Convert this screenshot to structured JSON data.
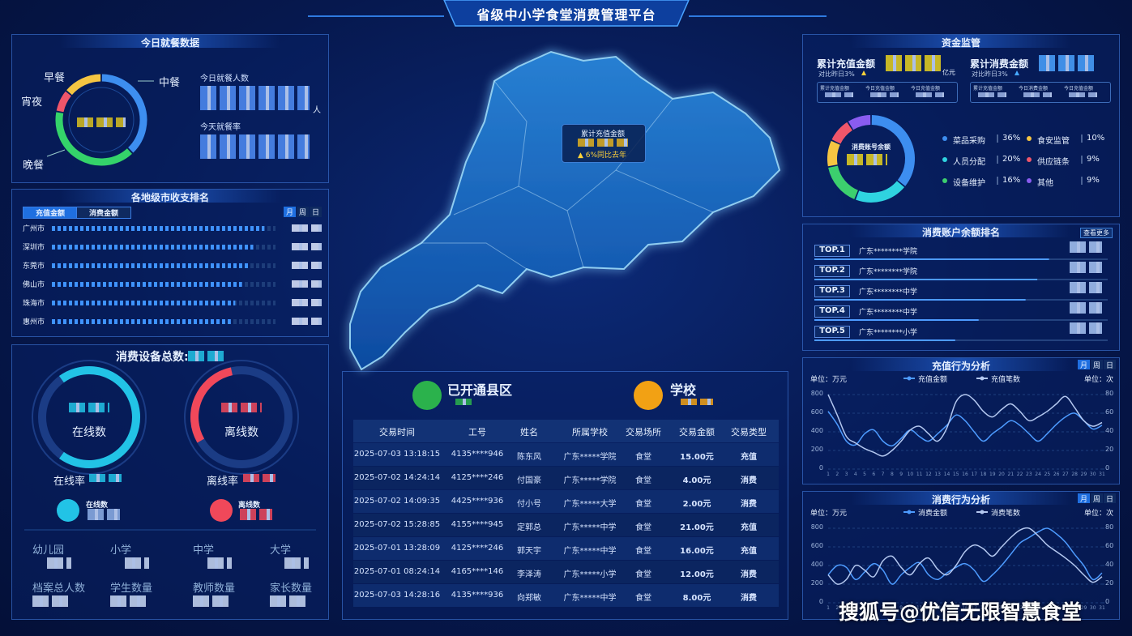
{
  "header": {
    "title": "省级中小学食堂消费管理平台"
  },
  "meals": {
    "title": "今日就餐数据",
    "donut": {
      "categories": [
        "中餐",
        "晚餐",
        "宵夜",
        "早餐"
      ],
      "values": [
        38,
        40,
        8,
        14
      ],
      "colors": [
        "#3d8ef0",
        "#34d36a",
        "#f0566a",
        "#f5c542"
      ]
    },
    "people_label": "今日就餐人数",
    "people_unit": "人",
    "rate_label": "今天就餐率"
  },
  "city_rank": {
    "title": "各地级市收支排名",
    "tabs": [
      "充值金额",
      "消费金额"
    ],
    "periods": [
      "月",
      "周",
      "日"
    ],
    "categories": [
      "广州市",
      "深圳市",
      "东莞市",
      "佛山市",
      "珠海市",
      "惠州市"
    ],
    "values": [
      95,
      90,
      88,
      85,
      82,
      80
    ]
  },
  "devices": {
    "title": "消费设备总数:",
    "gauges": {
      "categories": [
        "在线数",
        "离线数"
      ],
      "values": [
        70,
        30
      ],
      "colors": [
        "#22c3e6",
        "#f0485a"
      ]
    },
    "rates": [
      "在线率",
      "离线率"
    ],
    "status": [
      "在线数",
      "离线数"
    ],
    "schools": [
      "幼儿园",
      "小学",
      "中学",
      "大学"
    ],
    "people": [
      "档案总人数",
      "学生数量",
      "教师数量",
      "家长数量"
    ]
  },
  "map": {
    "label": "累计充值金额",
    "change": "▲ 6%同比去年"
  },
  "summary": {
    "counties": "已开通县区",
    "schools": "学校"
  },
  "transactions": {
    "columns": [
      "交易时间",
      "工号",
      "姓名",
      "所属学校",
      "交易场所",
      "交易金额",
      "交易类型"
    ],
    "rows": [
      [
        "2025-07-03 13:18:15",
        "4135****946",
        "陈东风",
        "广东*****学院",
        "食堂",
        "15.00元",
        "充值"
      ],
      [
        "2025-07-02 14:24:14",
        "4125****246",
        "付国豪",
        "广东*****学院",
        "食堂",
        "4.00元",
        "消费"
      ],
      [
        "2025-07-02 14:09:35",
        "4425****936",
        "付小号",
        "广东*****大学",
        "食堂",
        "2.00元",
        "消费"
      ],
      [
        "2025-07-02 15:28:85",
        "4155****945",
        "定郭总",
        "广东*****中学",
        "食堂",
        "21.00元",
        "充值"
      ],
      [
        "2025-07-01 13:28:09",
        "4125****246",
        "郭天宇",
        "广东*****中学",
        "食堂",
        "16.00元",
        "充值"
      ],
      [
        "2025-07-01 08:24:14",
        "4165****146",
        "李泽涛",
        "广东*****小学",
        "食堂",
        "12.00元",
        "消费"
      ],
      [
        "2025-07-03 14:28:16",
        "4135****936",
        "向郑敏",
        "广东*****中学",
        "食堂",
        "8.00元",
        "消费"
      ]
    ]
  },
  "funds": {
    "title": "资金监管",
    "recharge": {
      "label": "累计充值金额",
      "compare": "对比昨日3%",
      "unit": "亿元",
      "tabs": [
        "累计充值金额",
        "今日充值金额",
        "今日充值金额"
      ]
    },
    "consume": {
      "label": "累计消费金额",
      "compare": "对比昨日3%",
      "tabs": [
        "累计充值金额",
        "今日消费金额",
        "今日充值金额"
      ]
    },
    "donut": {
      "title": "消费账号余额",
      "categories": [
        "菜品采购",
        "食安监管",
        "人员分配",
        "供应链条",
        "设备维护",
        "其他"
      ],
      "values": [
        36,
        10,
        20,
        9,
        16,
        9
      ],
      "value_labels": [
        "36%",
        "10%",
        "20%",
        "9%",
        "16%",
        "9%"
      ],
      "colors": [
        "#3d8ef0",
        "#f5c542",
        "#2fd3e0",
        "#f0566a",
        "#3ccf6e",
        "#8a5cf0"
      ]
    }
  },
  "balance_rank": {
    "title": "消费账户余额排名",
    "more": "查看更多",
    "ranks": [
      "TOP.1",
      "TOP.2",
      "TOP.3",
      "TOP.4",
      "TOP.5"
    ],
    "schools": [
      "广东********学院",
      "广东********学院",
      "广东********中学",
      "广东********中学",
      "广东********小学"
    ],
    "values": [
      80,
      76,
      72,
      56,
      48
    ]
  },
  "recharge_chart": {
    "title": "充值行为分析",
    "periods": [
      "月",
      "周",
      "日"
    ],
    "unit_left": "单位：万元",
    "unit_right": "单位：次",
    "x": [
      1,
      2,
      3,
      4,
      5,
      6,
      7,
      8,
      9,
      10,
      11,
      12,
      13,
      14,
      15,
      16,
      17,
      18,
      19,
      20,
      21,
      22,
      23,
      24,
      25,
      26,
      27,
      28,
      29,
      30,
      31
    ],
    "xlim": [
      1,
      31
    ],
    "ylim": [
      0,
      800
    ],
    "yticks": [
      0,
      200,
      400,
      600,
      800
    ],
    "y2lim": [
      0,
      80
    ],
    "y2ticks": [
      0,
      20,
      40,
      60,
      80
    ],
    "series": [
      {
        "name": "充值金额",
        "color": "#4d9bff",
        "values": [
          620,
          480,
          300,
          260,
          380,
          420,
          300,
          250,
          330,
          420,
          350,
          300,
          380,
          470,
          580,
          520,
          400,
          300,
          380,
          450,
          520,
          470,
          380,
          300,
          380,
          480,
          560,
          600,
          520,
          430,
          470
        ]
      },
      {
        "name": "充值笔数",
        "color": "#b4c8f0",
        "axis": "y2",
        "values": [
          80,
          58,
          35,
          28,
          22,
          18,
          14,
          20,
          30,
          42,
          46,
          38,
          30,
          44,
          72,
          80,
          74,
          62,
          56,
          64,
          70,
          62,
          52,
          56,
          62,
          70,
          78,
          66,
          52,
          46,
          50
        ]
      }
    ]
  },
  "consume_chart": {
    "title": "消费行为分析",
    "periods": [
      "月",
      "周",
      "日"
    ],
    "unit_left": "单位：万元",
    "unit_right": "单位：次",
    "x": [
      1,
      2,
      3,
      4,
      5,
      6,
      7,
      8,
      9,
      10,
      11,
      12,
      13,
      14,
      15,
      16,
      17,
      18,
      19,
      20,
      21,
      22,
      23,
      24,
      25,
      26,
      27,
      28,
      29,
      30,
      31
    ],
    "xlim": [
      1,
      31
    ],
    "ylim": [
      0,
      800
    ],
    "yticks": [
      0,
      200,
      400,
      600,
      800
    ],
    "y2lim": [
      0,
      80
    ],
    "y2ticks": [
      0,
      20,
      40,
      60,
      80
    ],
    "series": [
      {
        "name": "消费金额",
        "color": "#4d9bff",
        "values": [
          300,
          400,
          380,
          250,
          330,
          420,
          350,
          200,
          300,
          380,
          430,
          300,
          250,
          320,
          380,
          420,
          350,
          230,
          300,
          400,
          520,
          640,
          700,
          760,
          800,
          740,
          650,
          520,
          400,
          250,
          320
        ]
      },
      {
        "name": "消费笔数",
        "color": "#b4c8f0",
        "axis": "y2",
        "values": [
          30,
          20,
          25,
          40,
          35,
          28,
          45,
          50,
          38,
          30,
          42,
          48,
          36,
          30,
          40,
          55,
          62,
          58,
          50,
          60,
          70,
          78,
          80,
          72,
          62,
          55,
          48,
          40,
          30,
          22,
          28
        ]
      }
    ]
  },
  "watermark": "搜狐号@优信无限智慧食堂"
}
